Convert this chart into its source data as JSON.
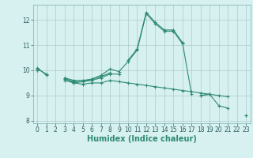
{
  "x": [
    0,
    1,
    2,
    3,
    4,
    5,
    6,
    7,
    8,
    9,
    10,
    11,
    12,
    13,
    14,
    15,
    16,
    17,
    18,
    19,
    20,
    21,
    22,
    23
  ],
  "line1": [
    10.1,
    9.8,
    null,
    9.7,
    9.6,
    9.6,
    9.65,
    9.8,
    10.05,
    9.95,
    10.35,
    10.8,
    12.25,
    11.85,
    11.55,
    11.55,
    11.05,
    null,
    9.0,
    9.05,
    null,
    null,
    null,
    null
  ],
  "line2": [
    10.0,
    null,
    null,
    9.7,
    9.5,
    9.55,
    9.65,
    9.75,
    9.9,
    null,
    10.4,
    10.85,
    12.3,
    11.9,
    11.6,
    11.6,
    11.1,
    9.05,
    null,
    null,
    null,
    null,
    null,
    null
  ],
  "line3": [
    10.05,
    9.85,
    null,
    9.65,
    9.55,
    9.55,
    9.6,
    9.7,
    9.85,
    9.85,
    null,
    null,
    null,
    null,
    null,
    null,
    null,
    null,
    9.0,
    9.05,
    8.6,
    8.5,
    null,
    8.2
  ],
  "line4": [
    10.0,
    null,
    null,
    9.6,
    9.5,
    9.45,
    9.5,
    9.5,
    9.6,
    9.55,
    9.5,
    9.45,
    9.4,
    9.35,
    9.3,
    9.25,
    9.2,
    9.15,
    9.1,
    9.05,
    9.0,
    8.95,
    null,
    8.2
  ],
  "line_color": "#2e8b72",
  "bg_color": "#d7f0f0",
  "grid_color": "#b0c8c8",
  "xlabel": "Humidex (Indice chaleur)",
  "xlim": [
    -0.5,
    23.5
  ],
  "ylim": [
    7.9,
    12.6
  ],
  "yticks": [
    8,
    9,
    10,
    11,
    12
  ],
  "xticks": [
    0,
    1,
    2,
    3,
    4,
    5,
    6,
    7,
    8,
    9,
    10,
    11,
    12,
    13,
    14,
    15,
    16,
    17,
    18,
    19,
    20,
    21,
    22,
    23
  ],
  "label_fontsize": 7,
  "tick_fontsize": 5.5
}
